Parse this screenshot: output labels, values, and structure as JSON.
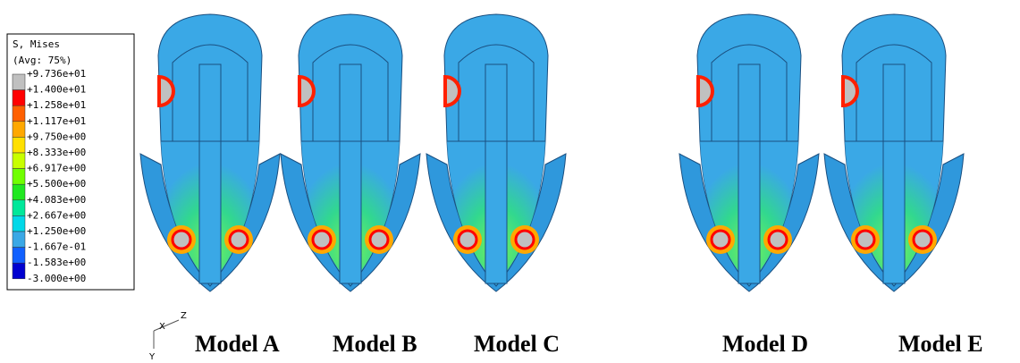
{
  "legend": {
    "title": "S, Mises",
    "subtitle": "(Avg: 75%)",
    "labels": [
      "+9.736e+01",
      "+1.400e+01",
      "+1.258e+01",
      "+1.117e+01",
      "+9.750e+00",
      "+8.333e+00",
      "+6.917e+00",
      "+5.500e+00",
      "+4.083e+00",
      "+2.667e+00",
      "+1.250e+00",
      "-1.667e-01",
      "-1.583e+00",
      "-3.000e+00"
    ],
    "colors": [
      "#c0c0c0",
      "#ff0000",
      "#ff6000",
      "#ffa800",
      "#ffe000",
      "#c8ff00",
      "#70ff00",
      "#20e820",
      "#00e89a",
      "#00d8e8",
      "#3aa8e6",
      "#1060ff",
      "#0000d0"
    ]
  },
  "models": [
    {
      "label": "Model A"
    },
    {
      "label": "Model B"
    },
    {
      "label": "Model C"
    },
    {
      "label": "Model D"
    },
    {
      "label": "Model E"
    }
  ],
  "axes": {
    "z": "Z",
    "x": "X",
    "y": "Y"
  }
}
